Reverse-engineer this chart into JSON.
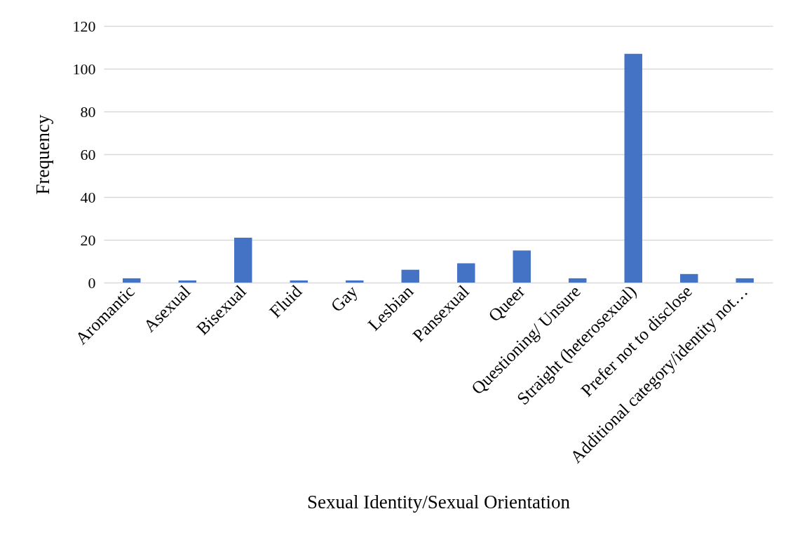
{
  "chart_data": {
    "type": "bar",
    "xlabel": "Sexual Identity/Sexual Orientation",
    "ylabel": "Frequency",
    "categories": [
      "Aromantic",
      "Asexual",
      "Bisexual",
      "Fluid",
      "Gay",
      "Lesbian",
      "Pansexual",
      "Queer",
      "Questioning/ Unsure",
      "Straight (heterosexual)",
      "Prefer not to disclose",
      "Additional category/identity not…"
    ],
    "values": [
      2,
      1,
      21,
      1,
      1,
      6,
      9,
      15,
      2,
      107,
      4,
      2
    ],
    "color": "#4472c4",
    "ylim": [
      0,
      120
    ],
    "yticks": [
      0,
      20,
      40,
      60,
      80,
      100,
      120
    ],
    "grid": "y"
  }
}
